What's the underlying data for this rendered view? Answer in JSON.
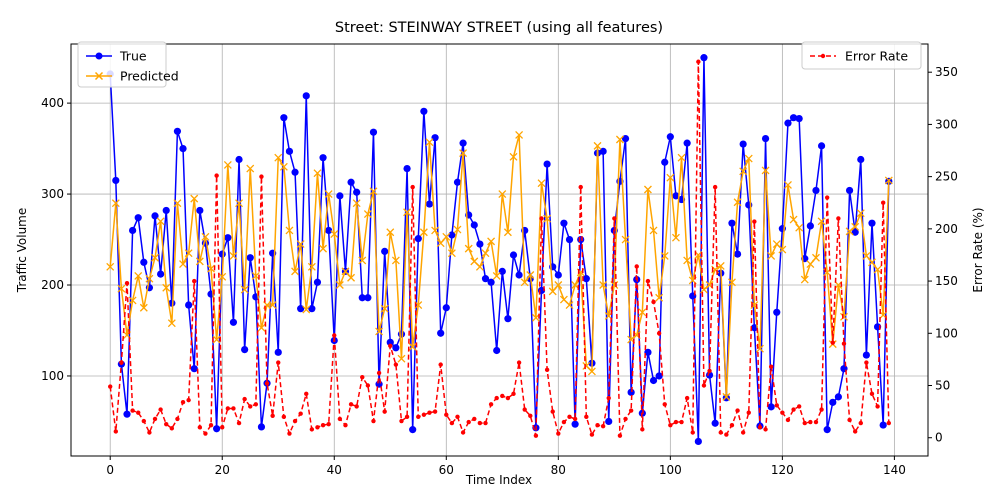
{
  "chart_data": {
    "type": "line",
    "title": "Street: STEINWAY STREET (using all features)",
    "xlabel": "Time Index",
    "ylabel": "Traffic Volume",
    "y2label": "Error Rate (%)",
    "xlim": [
      -7,
      146
    ],
    "ylim": [
      12,
      465
    ],
    "y2lim": [
      -17.5,
      377
    ],
    "xticks": [
      0,
      20,
      40,
      60,
      80,
      100,
      120,
      140
    ],
    "yticks": [
      100,
      200,
      300,
      400
    ],
    "y2ticks": [
      0,
      50,
      100,
      150,
      200,
      250,
      300,
      350
    ],
    "grid": true,
    "legend_left": "upper-left",
    "legend_right": "upper-right",
    "x": [
      0,
      1,
      2,
      3,
      4,
      5,
      6,
      7,
      8,
      9,
      10,
      11,
      12,
      13,
      14,
      15,
      16,
      17,
      18,
      19,
      20,
      21,
      22,
      23,
      24,
      25,
      26,
      27,
      28,
      29,
      30,
      31,
      32,
      33,
      34,
      35,
      36,
      37,
      38,
      39,
      40,
      41,
      42,
      43,
      44,
      45,
      46,
      47,
      48,
      49,
      50,
      51,
      52,
      53,
      54,
      55,
      56,
      57,
      58,
      59,
      60,
      61,
      62,
      63,
      64,
      65,
      66,
      67,
      68,
      69,
      70,
      71,
      72,
      73,
      74,
      75,
      76,
      77,
      78,
      79,
      80,
      81,
      82,
      83,
      84,
      85,
      86,
      87,
      88,
      89,
      90,
      91,
      92,
      93,
      94,
      95,
      96,
      97,
      98,
      99,
      100,
      101,
      102,
      103,
      104,
      105,
      106,
      107,
      108,
      109,
      110,
      111,
      112,
      113,
      114,
      115,
      116,
      117,
      118,
      119,
      120,
      121,
      122,
      123,
      124,
      125,
      126,
      127,
      128,
      129,
      130,
      131,
      132,
      133,
      134,
      135,
      136,
      137,
      138,
      139
    ],
    "series": [
      {
        "name": "True",
        "axis": "left",
        "color": "#0000ff",
        "style": "solid",
        "marker": "circle",
        "values": [
          432,
          315,
          113,
          58,
          260,
          274,
          225,
          197,
          276,
          212,
          282,
          180,
          369,
          350,
          178,
          108,
          282,
          246,
          190,
          42,
          234,
          252,
          159,
          338,
          129,
          230,
          187,
          44,
          92,
          235,
          126,
          384,
          347,
          324,
          174,
          408,
          174,
          203,
          340,
          260,
          139,
          298,
          215,
          313,
          302,
          186,
          186,
          368,
          91,
          237,
          137,
          131,
          146,
          328,
          41,
          251,
          391,
          289,
          362,
          147,
          175,
          255,
          313,
          356,
          277,
          266,
          245,
          207,
          203,
          128,
          215,
          163,
          233,
          211,
          260,
          207,
          43,
          194,
          333,
          220,
          211,
          268,
          250,
          47,
          250,
          207,
          114,
          345,
          347,
          50,
          260,
          314,
          361,
          82,
          206,
          59,
          126,
          95,
          100,
          335,
          363,
          298,
          294,
          356,
          188,
          28,
          450,
          101,
          48,
          213,
          76,
          268,
          234,
          355,
          288,
          153,
          45,
          361,
          66,
          170,
          262,
          378,
          384,
          383,
          229,
          265,
          304,
          353,
          41,
          71,
          77,
          108,
          304,
          258,
          338,
          123,
          268,
          154,
          46,
          314
        ]
      },
      {
        "name": "Predicted",
        "axis": "left",
        "color": "#ffa500",
        "style": "solid",
        "marker": "x",
        "values": [
          220,
          290,
          196,
          145,
          183,
          210,
          175,
          207,
          230,
          270,
          197,
          158,
          290,
          223,
          235,
          295,
          226,
          253,
          218,
          140,
          209,
          332,
          232,
          290,
          195,
          328,
          210,
          153,
          178,
          178,
          340,
          330,
          260,
          215,
          245,
          173,
          220,
          323,
          240,
          300,
          256,
          200,
          215,
          208,
          290,
          227,
          278,
          303,
          149,
          174,
          258,
          227,
          119,
          280,
          132,
          178,
          258,
          357,
          260,
          246,
          253,
          235,
          261,
          345,
          240,
          226,
          220,
          235,
          248,
          210,
          300,
          258,
          341,
          365,
          203,
          211,
          164,
          312,
          273,
          193,
          200,
          184,
          178,
          200,
          214,
          111,
          105,
          353,
          200,
          166,
          200,
          360,
          250,
          140,
          145,
          170,
          305,
          260,
          186,
          232,
          318,
          252,
          340,
          227,
          205,
          233,
          195,
          200,
          217,
          221,
          77,
          203,
          291,
          325,
          339,
          178,
          130,
          326,
          232,
          245,
          239,
          310,
          272,
          263,
          206,
          223,
          230,
          270,
          214,
          135,
          200,
          165,
          259,
          264,
          279,
          232,
          225,
          217,
          167,
          315
        ]
      },
      {
        "name": "Error Rate",
        "axis": "right",
        "color": "#ff0000",
        "style": "dashed",
        "marker": "dot",
        "values": [
          49,
          6,
          72,
          148,
          26,
          24,
          16,
          5,
          18,
          27,
          13,
          9,
          18,
          34,
          36,
          150,
          10,
          4,
          12,
          251,
          10,
          28,
          28,
          14,
          37,
          30,
          32,
          250,
          52,
          21,
          72,
          20,
          4,
          16,
          23,
          42,
          8,
          10,
          12,
          13,
          98,
          18,
          12,
          32,
          30,
          58,
          50,
          16,
          62,
          25,
          88,
          70,
          16,
          20,
          240,
          20,
          22,
          24,
          25,
          70,
          22,
          14,
          20,
          5,
          15,
          18,
          14,
          14,
          32,
          38,
          40,
          38,
          42,
          72,
          27,
          21,
          2,
          210,
          65,
          25,
          4,
          15,
          20,
          18,
          240,
          20,
          3,
          12,
          11,
          38,
          210,
          2,
          18,
          26,
          164,
          8,
          150,
          130,
          100,
          32,
          12,
          15,
          15,
          38,
          5,
          360,
          50,
          64,
          240,
          5,
          3,
          12,
          26,
          5,
          24,
          207,
          10,
          8,
          68,
          31,
          24,
          17,
          27,
          30,
          14,
          15,
          15,
          27,
          230,
          91,
          210,
          90,
          17,
          6,
          14,
          72,
          42,
          30,
          225,
          14
        ]
      }
    ]
  }
}
